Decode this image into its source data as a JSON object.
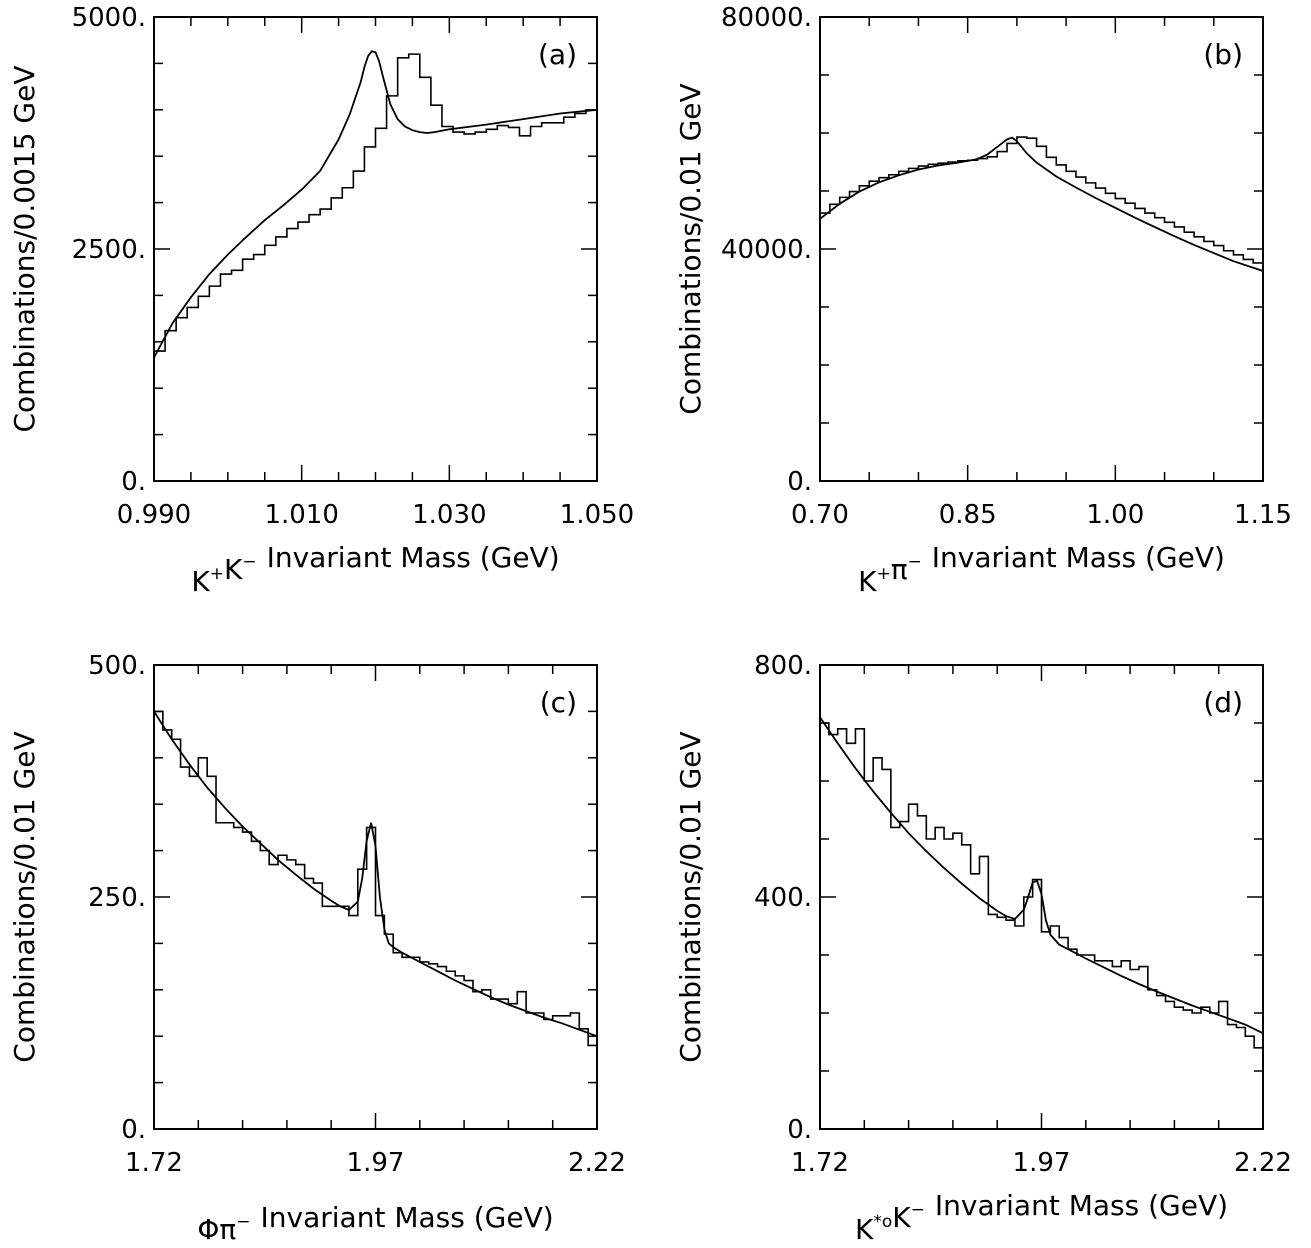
{
  "chart_data": [
    {
      "type": "line",
      "label": "(a)",
      "xlabel": "Invariant Mass (GeV)",
      "xlabel_particles": [
        {
          "base": "K",
          "sup": "+"
        },
        {
          "base": "K",
          "sup": "−"
        }
      ],
      "ylabel": "Combinations/0.0015 GeV",
      "xlim": [
        0.99,
        1.05
      ],
      "ylim": [
        0,
        5000
      ],
      "x_ticks": [
        "0.990",
        "1.010",
        "1.030",
        "1.050"
      ],
      "y_ticks": [
        "0.",
        "2500.",
        "5000."
      ],
      "x_tick_values": [
        0.99,
        1.01,
        1.03,
        1.05
      ],
      "y_tick_values": [
        0,
        2500,
        5000
      ],
      "minor_x_step": 0.005,
      "minor_y_step": 500,
      "bin_width": 0.0015,
      "histogram": {
        "x_start": 0.99,
        "values": [
          1400,
          1620,
          1760,
          1870,
          1990,
          2100,
          2230,
          2270,
          2390,
          2440,
          2540,
          2630,
          2720,
          2790,
          2870,
          2930,
          3050,
          3160,
          3340,
          3600,
          3800,
          4150,
          4560,
          4600,
          4350,
          4050,
          3820,
          3760,
          3740,
          3760,
          3790,
          3830,
          3810,
          3720,
          3820,
          3860,
          3860,
          3920,
          3960,
          4000
        ]
      },
      "fit": {
        "x": [
          0.99,
          0.9925,
          0.995,
          0.9975,
          1.0,
          1.0025,
          1.005,
          1.0075,
          1.01,
          1.0125,
          1.015,
          1.0165,
          1.018,
          1.0185,
          1.019,
          1.0195,
          1.02,
          1.0205,
          1.021,
          1.022,
          1.023,
          1.024,
          1.025,
          1.026,
          1.027,
          1.028,
          1.03,
          1.035,
          1.04,
          1.045,
          1.05
        ],
        "y": [
          1330,
          1700,
          1980,
          2230,
          2440,
          2630,
          2810,
          2970,
          3140,
          3340,
          3680,
          3950,
          4300,
          4460,
          4580,
          4630,
          4620,
          4520,
          4360,
          4060,
          3900,
          3820,
          3780,
          3760,
          3750,
          3760,
          3790,
          3840,
          3900,
          3960,
          4000
        ]
      }
    },
    {
      "type": "line",
      "label": "(b)",
      "xlabel": "Invariant Mass (GeV)",
      "xlabel_particles": [
        {
          "base": "K",
          "sup": "+"
        },
        {
          "base": "π",
          "sup": "−"
        }
      ],
      "ylabel": "Combinations/0.01 GeV",
      "xlim": [
        0.7,
        1.15
      ],
      "ylim": [
        0,
        80000
      ],
      "x_ticks": [
        "0.70",
        "0.85",
        "1.00",
        "1.15"
      ],
      "y_ticks": [
        "0.",
        "40000.",
        "80000."
      ],
      "x_tick_values": [
        0.7,
        0.85,
        1.0,
        1.15
      ],
      "y_tick_values": [
        0,
        40000,
        80000
      ],
      "minor_x_step": 0.05,
      "minor_y_step": 10000,
      "bin_width": 0.01,
      "histogram": {
        "x_start": 0.7,
        "values": [
          46200,
          47700,
          48900,
          49900,
          50900,
          51700,
          52300,
          52800,
          53400,
          53900,
          54300,
          54600,
          54800,
          55000,
          55200,
          55300,
          55600,
          55900,
          56800,
          58200,
          59300,
          59100,
          57700,
          55800,
          54500,
          53400,
          52400,
          51400,
          50500,
          49600,
          48700,
          47900,
          47000,
          46200,
          45400,
          44600,
          43800,
          42900,
          42100,
          41300,
          40600,
          39700,
          39000,
          38200,
          37600
        ]
      },
      "fit": {
        "x": [
          0.7,
          0.72,
          0.74,
          0.76,
          0.78,
          0.8,
          0.82,
          0.84,
          0.86,
          0.87,
          0.88,
          0.89,
          0.895,
          0.9,
          0.91,
          0.92,
          0.94,
          0.96,
          0.98,
          1.0,
          1.02,
          1.04,
          1.06,
          1.08,
          1.1,
          1.12,
          1.15
        ],
        "y": [
          45200,
          47800,
          49900,
          51500,
          52700,
          53700,
          54400,
          54900,
          55500,
          56300,
          57600,
          58900,
          59200,
          58600,
          56500,
          54900,
          52500,
          50600,
          48800,
          47100,
          45400,
          43800,
          42200,
          40700,
          39300,
          37900,
          36200
        ]
      }
    },
    {
      "type": "line",
      "label": "(c)",
      "xlabel": "Invariant Mass (GeV)",
      "xlabel_particles": [
        {
          "base": "Φ",
          "sup": ""
        },
        {
          "base": "π",
          "sup": "−"
        }
      ],
      "ylabel": "Combinations/0.01 GeV",
      "xlim": [
        1.72,
        2.22
      ],
      "ylim": [
        0,
        500
      ],
      "x_ticks": [
        "1.72",
        "1.97",
        "2.22"
      ],
      "y_ticks": [
        "0.",
        "250.",
        "500."
      ],
      "x_tick_values": [
        1.72,
        1.97,
        2.22
      ],
      "y_tick_values": [
        0,
        250,
        500
      ],
      "minor_x_step": 0.05,
      "minor_y_step": 50,
      "bin_width": 0.01,
      "histogram": {
        "x_start": 1.72,
        "values": [
          450,
          430,
          420,
          390,
          380,
          400,
          380,
          330,
          330,
          325,
          320,
          310,
          300,
          285,
          295,
          290,
          285,
          270,
          265,
          240,
          240,
          240,
          230,
          280,
          325,
          230,
          210,
          190,
          185,
          185,
          180,
          178,
          175,
          170,
          165,
          160,
          148,
          150,
          140,
          140,
          135,
          148,
          125,
          125,
          118,
          122,
          122,
          125,
          108,
          90
        ]
      },
      "fit": {
        "x": [
          1.72,
          1.74,
          1.76,
          1.78,
          1.8,
          1.82,
          1.84,
          1.86,
          1.88,
          1.9,
          1.92,
          1.93,
          1.94,
          1.95,
          1.955,
          1.96,
          1.965,
          1.97,
          1.975,
          1.98,
          1.985,
          1.99,
          2.0,
          2.02,
          2.04,
          2.06,
          2.08,
          2.1,
          2.12,
          2.14,
          2.16,
          2.18,
          2.2,
          2.22
        ],
        "y": [
          450,
          420,
          393,
          368,
          346,
          326,
          308,
          290,
          274,
          259,
          246,
          240,
          236,
          245,
          270,
          310,
          330,
          305,
          250,
          215,
          200,
          196,
          190,
          180,
          170,
          160,
          151,
          142,
          134,
          127,
          120,
          114,
          107,
          100
        ]
      }
    },
    {
      "type": "line",
      "label": "(d)",
      "xlabel": "Invariant Mass (GeV)",
      "xlabel_particles": [
        {
          "base": "K",
          "sup": "*o"
        },
        {
          "base": "K",
          "sup": "−"
        }
      ],
      "ylabel": "Combinations/0.01 GeV",
      "xlim": [
        1.72,
        2.22
      ],
      "ylim": [
        0,
        800
      ],
      "x_ticks": [
        "1.72",
        "1.97",
        "2.22"
      ],
      "y_ticks": [
        "0.",
        "400.",
        "800."
      ],
      "x_tick_values": [
        1.72,
        1.97,
        2.22
      ],
      "y_tick_values": [
        0,
        400,
        800
      ],
      "minor_x_step": 0.05,
      "minor_y_step": 100,
      "bin_width": 0.01,
      "histogram": {
        "x_start": 1.72,
        "values": [
          700,
          680,
          690,
          665,
          690,
          600,
          640,
          620,
          520,
          530,
          560,
          540,
          500,
          520,
          500,
          510,
          490,
          440,
          470,
          370,
          365,
          360,
          350,
          400,
          430,
          340,
          350,
          330,
          310,
          300,
          300,
          290,
          290,
          280,
          290,
          275,
          280,
          240,
          230,
          220,
          210,
          205,
          200,
          210,
          200,
          220,
          180,
          175,
          160,
          140
        ]
      },
      "fit": {
        "x": [
          1.72,
          1.74,
          1.76,
          1.78,
          1.8,
          1.82,
          1.84,
          1.86,
          1.88,
          1.9,
          1.92,
          1.93,
          1.94,
          1.95,
          1.955,
          1.96,
          1.965,
          1.97,
          1.975,
          1.98,
          1.99,
          2.0,
          2.02,
          2.04,
          2.06,
          2.08,
          2.1,
          2.12,
          2.14,
          2.16,
          2.18,
          2.2,
          2.22
        ],
        "y": [
          710,
          665,
          622,
          582,
          545,
          510,
          479,
          450,
          423,
          398,
          376,
          367,
          362,
          378,
          400,
          425,
          428,
          405,
          360,
          335,
          318,
          310,
          294,
          279,
          264,
          250,
          237,
          225,
          213,
          202,
          191,
          180,
          165
        ]
      }
    }
  ]
}
